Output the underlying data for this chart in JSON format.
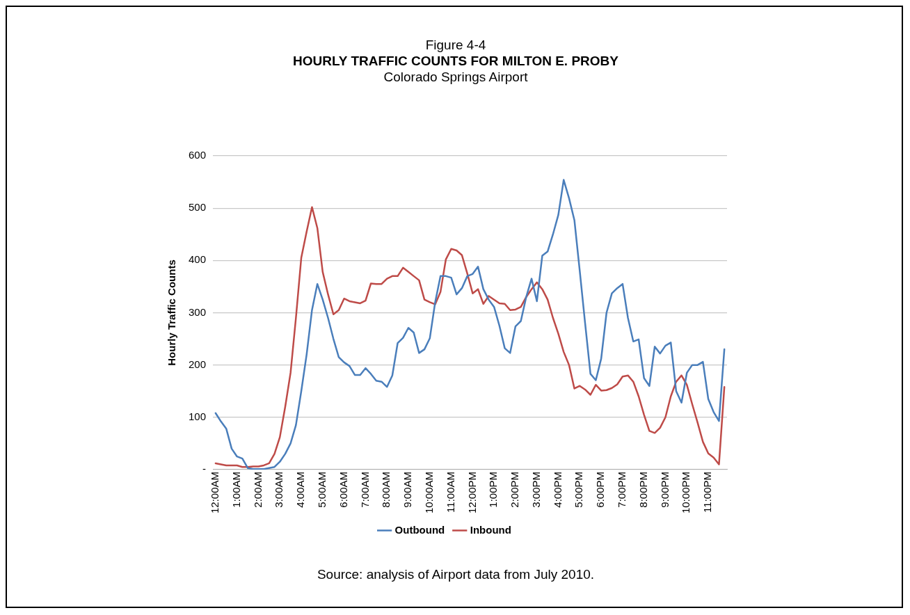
{
  "chart_data": {
    "type": "line",
    "title": "HOURLY TRAFFIC COUNTS FOR MILTON E. PROBY",
    "subtitle": "Colorado Springs Airport",
    "ylabel": "Hourly Traffic Counts",
    "annotations": [
      "Figure 4-4",
      "Source:  analysis of Airport data from July 2010."
    ],
    "categories": [
      "12:00AM",
      null,
      null,
      null,
      "1:00AM",
      null,
      null,
      null,
      "2:00AM",
      null,
      null,
      null,
      "3:00AM",
      null,
      null,
      null,
      "4:00AM",
      null,
      null,
      null,
      "5:00AM",
      null,
      null,
      null,
      "6:00AM",
      null,
      null,
      null,
      "7:00AM",
      null,
      null,
      null,
      "8:00AM",
      null,
      null,
      null,
      "9:00AM",
      null,
      null,
      null,
      "10:00AM",
      null,
      null,
      null,
      "11:00AM",
      null,
      null,
      null,
      "12:00PM",
      null,
      null,
      null,
      "1:00PM",
      null,
      null,
      null,
      "2:00PM",
      null,
      null,
      null,
      "3:00PM",
      null,
      null,
      null,
      "4:00PM",
      null,
      null,
      null,
      "5:00PM",
      null,
      null,
      null,
      "6:00PM",
      null,
      null,
      null,
      "7:00PM",
      null,
      null,
      null,
      "8:00PM",
      null,
      null,
      null,
      "9:00PM",
      null,
      null,
      null,
      "10:00PM",
      null,
      null,
      null,
      "11:00PM",
      null,
      null,
      null
    ],
    "series": [
      {
        "name": "Outbound",
        "color": "#4a7ebb",
        "values": [
          108,
          92,
          78,
          40,
          25,
          21,
          3,
          1,
          1,
          1,
          3,
          5,
          15,
          30,
          50,
          85,
          150,
          220,
          305,
          355,
          325,
          290,
          250,
          215,
          205,
          198,
          181,
          181,
          194,
          183,
          170,
          168,
          158,
          180,
          242,
          252,
          271,
          262,
          223,
          230,
          251,
          320,
          370,
          370,
          367,
          335,
          347,
          370,
          374,
          388,
          345,
          325,
          311,
          275,
          232,
          223,
          274,
          284,
          330,
          365,
          322,
          409,
          417,
          450,
          487,
          554,
          519,
          477,
          380,
          280,
          183,
          171,
          212,
          300,
          337,
          347,
          355,
          290,
          245,
          249,
          175,
          160,
          235,
          222,
          237,
          243,
          150,
          128,
          185,
          200,
          200,
          206,
          135,
          110,
          93,
          230
        ]
      },
      {
        "name": "Inbound",
        "color": "#be4b48",
        "values": [
          12,
          10,
          8,
          8,
          8,
          5,
          5,
          6,
          6,
          8,
          12,
          30,
          62,
          120,
          185,
          290,
          405,
          455,
          502,
          462,
          378,
          335,
          297,
          305,
          327,
          322,
          320,
          318,
          323,
          356,
          355,
          355,
          365,
          370,
          370,
          386,
          378,
          370,
          362,
          325,
          320,
          316,
          340,
          402,
          422,
          419,
          410,
          375,
          337,
          345,
          317,
          332,
          325,
          318,
          317,
          305,
          306,
          311,
          330,
          345,
          358,
          345,
          325,
          290,
          260,
          225,
          200,
          155,
          160,
          153,
          143,
          162,
          151,
          152,
          156,
          163,
          178,
          180,
          168,
          140,
          105,
          74,
          70,
          80,
          100,
          140,
          168,
          180,
          162,
          125,
          90,
          53,
          31,
          23,
          10,
          158
        ]
      }
    ],
    "ylim": [
      0,
      600
    ],
    "yticks": [
      {
        "value": 0,
        "label": "-"
      },
      100,
      200,
      300,
      400,
      500,
      600
    ],
    "grid": "y",
    "legend": "bottom",
    "marker": "none",
    "line_style": "solid"
  }
}
